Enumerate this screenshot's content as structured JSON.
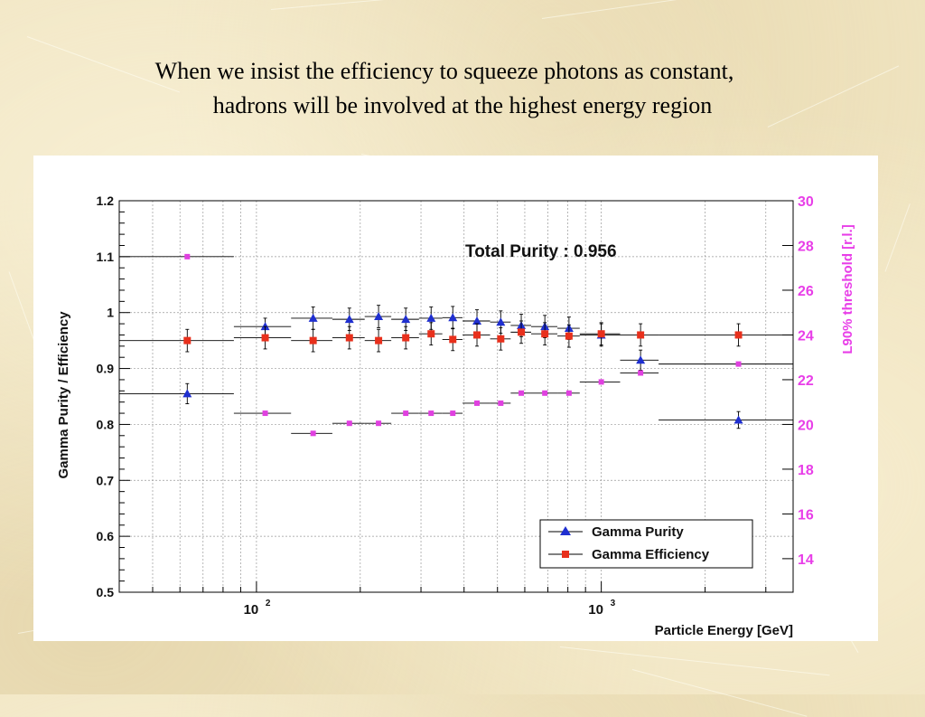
{
  "slide": {
    "title_line1": "When we insist the efficiency to squeeze photons as constant,",
    "title_line2": "hadrons will be involved at the highest energy region"
  },
  "chart_data": {
    "type": "scatter",
    "annotation": "Total Purity : 0.956",
    "xlabel": "Particle Energy [GeV]",
    "ylabel": "Gamma Purity / Efficiency",
    "y2label": "L90% threshold [r.l.]",
    "xscale": "log",
    "xlim": [
      40,
      3600
    ],
    "ylim": [
      0.5,
      1.2
    ],
    "y2lim": [
      12.5,
      30
    ],
    "xtick_labels": [
      "10",
      "10"
    ],
    "xtick_exponents": [
      "2",
      "3"
    ],
    "ytick_labels": [
      "0.5",
      "0.6",
      "0.7",
      "0.8",
      "0.9",
      "1",
      "1.1",
      "1.2"
    ],
    "y2tick_labels": [
      "14",
      "16",
      "18",
      "20",
      "22",
      "24",
      "26",
      "28",
      "30"
    ],
    "grid": true,
    "legend_position": "bottom-right",
    "colors": {
      "purity": "#1f2fd0",
      "efficiency": "#e8301c",
      "threshold": "#e040e0",
      "axis2": "#e83ee8"
    },
    "series": [
      {
        "name": "Gamma Purity",
        "marker": "triangle",
        "points": [
          {
            "x": 63,
            "xlo": 40,
            "xhi": 86,
            "y": 0.855,
            "yerr": 0.018
          },
          {
            "x": 106,
            "xlo": 86,
            "xhi": 126,
            "y": 0.975,
            "yerr": 0.015
          },
          {
            "x": 146,
            "xlo": 126,
            "xhi": 166,
            "y": 0.99,
            "yerr": 0.02
          },
          {
            "x": 186,
            "xlo": 166,
            "xhi": 206,
            "y": 0.988,
            "yerr": 0.02
          },
          {
            "x": 226,
            "xlo": 206,
            "xhi": 246,
            "y": 0.993,
            "yerr": 0.02
          },
          {
            "x": 271,
            "xlo": 246,
            "xhi": 296,
            "y": 0.988,
            "yerr": 0.02
          },
          {
            "x": 321,
            "xlo": 296,
            "xhi": 346,
            "y": 0.99,
            "yerr": 0.02
          },
          {
            "x": 371,
            "xlo": 346,
            "xhi": 396,
            "y": 0.991,
            "yerr": 0.02
          },
          {
            "x": 436,
            "xlo": 396,
            "xhi": 476,
            "y": 0.985,
            "yerr": 0.02
          },
          {
            "x": 511,
            "xlo": 476,
            "xhi": 546,
            "y": 0.983,
            "yerr": 0.02
          },
          {
            "x": 586,
            "xlo": 546,
            "xhi": 626,
            "y": 0.977,
            "yerr": 0.02
          },
          {
            "x": 686,
            "xlo": 626,
            "xhi": 746,
            "y": 0.975,
            "yerr": 0.02
          },
          {
            "x": 806,
            "xlo": 746,
            "xhi": 866,
            "y": 0.972,
            "yerr": 0.02
          },
          {
            "x": 1000,
            "xlo": 866,
            "xhi": 1134,
            "y": 0.96,
            "yerr": 0.02
          },
          {
            "x": 1300,
            "xlo": 1134,
            "xhi": 1466,
            "y": 0.915,
            "yerr": 0.018
          },
          {
            "x": 2500,
            "xlo": 1466,
            "xhi": 3600,
            "y": 0.808,
            "yerr": 0.015
          }
        ]
      },
      {
        "name": "Gamma Efficiency",
        "marker": "square",
        "points": [
          {
            "x": 63,
            "xlo": 40,
            "xhi": 86,
            "y": 0.95,
            "yerr": 0.02
          },
          {
            "x": 106,
            "xlo": 86,
            "xhi": 126,
            "y": 0.955,
            "yerr": 0.02
          },
          {
            "x": 146,
            "xlo": 126,
            "xhi": 166,
            "y": 0.95,
            "yerr": 0.02
          },
          {
            "x": 186,
            "xlo": 166,
            "xhi": 206,
            "y": 0.955,
            "yerr": 0.02
          },
          {
            "x": 226,
            "xlo": 206,
            "xhi": 246,
            "y": 0.95,
            "yerr": 0.02
          },
          {
            "x": 271,
            "xlo": 246,
            "xhi": 296,
            "y": 0.955,
            "yerr": 0.02
          },
          {
            "x": 321,
            "xlo": 296,
            "xhi": 346,
            "y": 0.962,
            "yerr": 0.02
          },
          {
            "x": 371,
            "xlo": 346,
            "xhi": 396,
            "y": 0.952,
            "yerr": 0.02
          },
          {
            "x": 436,
            "xlo": 396,
            "xhi": 476,
            "y": 0.96,
            "yerr": 0.02
          },
          {
            "x": 511,
            "xlo": 476,
            "xhi": 546,
            "y": 0.953,
            "yerr": 0.02
          },
          {
            "x": 586,
            "xlo": 546,
            "xhi": 626,
            "y": 0.965,
            "yerr": 0.02
          },
          {
            "x": 686,
            "xlo": 626,
            "xhi": 746,
            "y": 0.962,
            "yerr": 0.02
          },
          {
            "x": 806,
            "xlo": 746,
            "xhi": 866,
            "y": 0.958,
            "yerr": 0.02
          },
          {
            "x": 1000,
            "xlo": 866,
            "xhi": 1134,
            "y": 0.962,
            "yerr": 0.02
          },
          {
            "x": 1300,
            "xlo": 1134,
            "xhi": 1466,
            "y": 0.96,
            "yerr": 0.02
          },
          {
            "x": 2500,
            "xlo": 1466,
            "xhi": 3600,
            "y": 0.96,
            "yerr": 0.02
          }
        ]
      },
      {
        "name": "",
        "marker": "square-small",
        "axis": "right",
        "points": [
          {
            "x": 63,
            "xlo": 40,
            "xhi": 86,
            "y": 27.5
          },
          {
            "x": 106,
            "xlo": 86,
            "xhi": 126,
            "y": 20.5
          },
          {
            "x": 146,
            "xlo": 126,
            "xhi": 166,
            "y": 19.6
          },
          {
            "x": 186,
            "xlo": 166,
            "xhi": 206,
            "y": 20.05
          },
          {
            "x": 226,
            "xlo": 206,
            "xhi": 246,
            "y": 20.05
          },
          {
            "x": 271,
            "xlo": 246,
            "xhi": 296,
            "y": 20.5
          },
          {
            "x": 321,
            "xlo": 296,
            "xhi": 346,
            "y": 20.5
          },
          {
            "x": 371,
            "xlo": 346,
            "xhi": 396,
            "y": 20.5
          },
          {
            "x": 436,
            "xlo": 396,
            "xhi": 476,
            "y": 20.95
          },
          {
            "x": 511,
            "xlo": 476,
            "xhi": 546,
            "y": 20.95
          },
          {
            "x": 586,
            "xlo": 546,
            "xhi": 626,
            "y": 21.4
          },
          {
            "x": 686,
            "xlo": 626,
            "xhi": 746,
            "y": 21.4
          },
          {
            "x": 806,
            "xlo": 746,
            "xhi": 866,
            "y": 21.4
          },
          {
            "x": 1000,
            "xlo": 866,
            "xhi": 1134,
            "y": 21.9
          },
          {
            "x": 1300,
            "xlo": 1134,
            "xhi": 1466,
            "y": 22.3
          },
          {
            "x": 2500,
            "xlo": 1466,
            "xhi": 3600,
            "y": 22.7
          }
        ]
      }
    ]
  }
}
